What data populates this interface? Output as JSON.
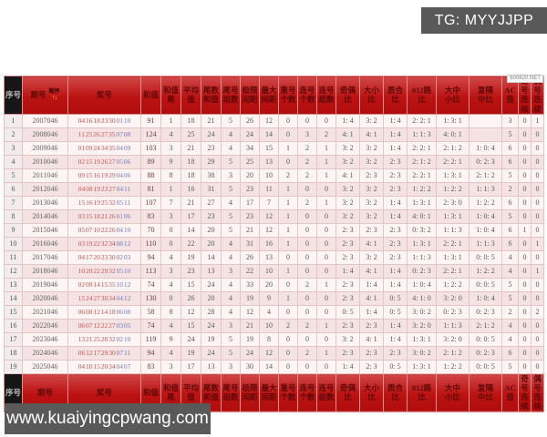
{
  "banners": {
    "tg": "TG: MYYJJPP",
    "site": "www.kuaiyingcpwang.com",
    "watermark": "600820.NET"
  },
  "colors": {
    "header_red": "#bc1212",
    "front_number": "#c85454",
    "back_number": "#7878bc",
    "banner_gray": "#595959"
  },
  "table": {
    "sort": {
      "label": "顺序",
      "arrows": "↑↓"
    },
    "columns": [
      {
        "key": "seq",
        "label": "序号"
      },
      {
        "key": "period",
        "label": "期号"
      },
      {
        "key": "prize",
        "label": "奖号"
      },
      {
        "key": "sum",
        "label": "和值"
      },
      {
        "key": "sum-tail",
        "label": "和值\n尾"
      },
      {
        "key": "avg",
        "label": "平均\n值"
      },
      {
        "key": "tail-sum",
        "label": "尾数\n和值"
      },
      {
        "key": "tail-groups",
        "label": "尾号\n组数"
      },
      {
        "key": "span",
        "label": "极限\n间距"
      },
      {
        "key": "max-gap",
        "label": "最大\n间距"
      },
      {
        "key": "repeat-count",
        "label": "重号\n个数"
      },
      {
        "key": "consec-count",
        "label": "连号\n个数"
      },
      {
        "key": "consec-groups",
        "label": "连号\n组数"
      },
      {
        "key": "odd-even-ratio",
        "label": "奇偶\n比"
      },
      {
        "key": "big-small-ratio",
        "label": "大小\n比"
      },
      {
        "key": "prime-comp-ratio",
        "label": "质合\n比"
      },
      {
        "key": "road012-ratio",
        "label": "012路\n比"
      },
      {
        "key": "big-mid-small-ratio",
        "label": "大中\n小比"
      },
      {
        "key": "rep-int-mid-ratio",
        "label": "复隔\n中比"
      },
      {
        "key": "ac-value",
        "label": "AC值"
      },
      {
        "key": "odd-run",
        "label": "奇号\n连续"
      },
      {
        "key": "even-run",
        "label": "偶号\n连续"
      }
    ],
    "rows": [
      {
        "seq": "1",
        "period": "2007046",
        "front": [
          "04",
          "16",
          "18",
          "23",
          "30"
        ],
        "back": [
          "01",
          "10"
        ],
        "stats": [
          "91",
          "1",
          "18",
          "21",
          "5",
          "26",
          "12",
          "0",
          "0",
          "0",
          "1: 4",
          "3: 2",
          "1: 4",
          "2: 2: 1",
          "1: 3: 1",
          "",
          "3",
          "0",
          "1"
        ]
      },
      {
        "seq": "2",
        "period": "2008046",
        "front": [
          "11",
          "25",
          "26",
          "27",
          "35"
        ],
        "back": [
          "07",
          "08"
        ],
        "stats": [
          "124",
          "4",
          "25",
          "24",
          "4",
          "24",
          "14",
          "0",
          "3",
          "2",
          "4: 1",
          "4: 1",
          "1: 4",
          "1: 1: 3",
          "4: 0: 1",
          "",
          "5",
          "0",
          "0"
        ]
      },
      {
        "seq": "3",
        "period": "2009046",
        "front": [
          "01",
          "09",
          "24",
          "34",
          "35"
        ],
        "back": [
          "04",
          "09"
        ],
        "stats": [
          "103",
          "3",
          "21",
          "23",
          "4",
          "34",
          "15",
          "1",
          "2",
          "1",
          "3: 2",
          "3: 2",
          "1: 4",
          "2: 2: 1",
          "2: 1: 2",
          "1: 0: 4",
          "6",
          "0",
          "0"
        ]
      },
      {
        "seq": "4",
        "period": "2010046",
        "front": [
          "02",
          "15",
          "19",
          "26",
          "27"
        ],
        "back": [
          "05",
          "06"
        ],
        "stats": [
          "89",
          "9",
          "18",
          "29",
          "5",
          "25",
          "13",
          "0",
          "2",
          "1",
          "3: 2",
          "3: 2",
          "2: 3",
          "2: 1: 2",
          "2: 2: 1",
          "0: 2: 3",
          "6",
          "0",
          "0"
        ]
      },
      {
        "seq": "5",
        "period": "2011046",
        "front": [
          "09",
          "15",
          "16",
          "19",
          "29"
        ],
        "back": [
          "04",
          "06"
        ],
        "stats": [
          "88",
          "8",
          "18",
          "38",
          "3",
          "20",
          "10",
          "2",
          "2",
          "1",
          "4: 1",
          "2: 3",
          "2: 3",
          "2: 2: 1",
          "1: 3: 1",
          "2: 1: 2",
          "5",
          "0",
          "0"
        ]
      },
      {
        "seq": "6",
        "period": "2012046",
        "front": [
          "04",
          "08",
          "19",
          "23",
          "27"
        ],
        "back": [
          "04",
          "11"
        ],
        "stats": [
          "81",
          "1",
          "16",
          "31",
          "5",
          "23",
          "11",
          "1",
          "0",
          "0",
          "3: 2",
          "3: 2",
          "2: 3",
          "1: 2: 2",
          "1: 2: 2",
          "1: 1: 3",
          "2",
          "0",
          "0"
        ]
      },
      {
        "seq": "7",
        "period": "2013046",
        "front": [
          "15",
          "16",
          "19",
          "25",
          "32"
        ],
        "back": [
          "05",
          "11"
        ],
        "stats": [
          "107",
          "7",
          "21",
          "27",
          "4",
          "17",
          "7",
          "1",
          "2",
          "1",
          "3: 2",
          "3: 2",
          "1: 4",
          "1: 3: 1",
          "2: 3: 0",
          "1: 2: 2",
          "6",
          "0",
          "0"
        ]
      },
      {
        "seq": "8",
        "period": "2014046",
        "front": [
          "03",
          "15",
          "18",
          "21",
          "26"
        ],
        "back": [
          "01",
          "06"
        ],
        "stats": [
          "83",
          "3",
          "17",
          "23",
          "5",
          "23",
          "12",
          "1",
          "0",
          "0",
          "3: 2",
          "3: 2",
          "1: 4",
          "4: 0: 1",
          "1: 3: 1",
          "1: 0: 4",
          "5",
          "0",
          "0"
        ]
      },
      {
        "seq": "9",
        "period": "2015046",
        "front": [
          "05",
          "07",
          "10",
          "22",
          "26"
        ],
        "back": [
          "04",
          "10"
        ],
        "stats": [
          "70",
          "0",
          "14",
          "20",
          "5",
          "21",
          "12",
          "1",
          "0",
          "0",
          "2: 3",
          "2: 3",
          "2: 3",
          "0: 3: 2",
          "1: 1: 3",
          "1: 0: 4",
          "6",
          "1",
          "0"
        ]
      },
      {
        "seq": "10",
        "period": "2016046",
        "front": [
          "03",
          "19",
          "22",
          "32",
          "34"
        ],
        "back": [
          "08",
          "12"
        ],
        "stats": [
          "110",
          "0",
          "22",
          "20",
          "4",
          "31",
          "16",
          "1",
          "0",
          "0",
          "2: 3",
          "4: 1",
          "2: 3",
          "1: 3: 1",
          "2: 2: 1",
          "1: 1: 3",
          "6",
          "0",
          "1"
        ]
      },
      {
        "seq": "11",
        "period": "2017046",
        "front": [
          "04",
          "17",
          "20",
          "23",
          "30"
        ],
        "back": [
          "02",
          "03"
        ],
        "stats": [
          "94",
          "4",
          "19",
          "14",
          "4",
          "26",
          "13",
          "0",
          "0",
          "0",
          "2: 3",
          "3: 2",
          "2: 3",
          "1: 1: 3",
          "1: 3: 1",
          "0: 0: 5",
          "4",
          "0",
          "0"
        ]
      },
      {
        "seq": "12",
        "period": "2018046",
        "front": [
          "10",
          "20",
          "22",
          "29",
          "32"
        ],
        "back": [
          "05",
          "10"
        ],
        "stats": [
          "113",
          "3",
          "23",
          "13",
          "3",
          "22",
          "10",
          "1",
          "0",
          "0",
          "1: 4",
          "4: 1",
          "1: 4",
          "0: 2: 3",
          "2: 2: 1",
          "1: 2: 2",
          "4",
          "0",
          "1"
        ]
      },
      {
        "seq": "13",
        "period": "2019046",
        "front": [
          "02",
          "08",
          "14",
          "15",
          "35"
        ],
        "back": [
          "10",
          "12"
        ],
        "stats": [
          "74",
          "4",
          "15",
          "24",
          "4",
          "33",
          "20",
          "0",
          "2",
          "1",
          "2: 3",
          "1: 4",
          "1: 4",
          "1: 0: 4",
          "1: 2: 2",
          "0: 0: 5",
          "5",
          "0",
          "0"
        ]
      },
      {
        "seq": "14",
        "period": "2020046",
        "front": [
          "15",
          "24",
          "27",
          "30",
          "34"
        ],
        "back": [
          "04",
          "12"
        ],
        "stats": [
          "130",
          "0",
          "26",
          "20",
          "4",
          "19",
          "9",
          "1",
          "0",
          "0",
          "2: 3",
          "4: 1",
          "0: 5",
          "4: 1: 0",
          "3: 2: 0",
          "1: 0: 4",
          "5",
          "0",
          "0"
        ]
      },
      {
        "seq": "15",
        "period": "2021046",
        "front": [
          "06",
          "08",
          "12",
          "14",
          "18"
        ],
        "back": [
          "06",
          "08"
        ],
        "stats": [
          "58",
          "8",
          "12",
          "28",
          "4",
          "12",
          "4",
          "0",
          "0",
          "0",
          "0: 5",
          "1: 4",
          "0: 5",
          "3: 0: 2",
          "0: 2: 3",
          "0: 2: 3",
          "2",
          "0",
          "2"
        ]
      },
      {
        "seq": "16",
        "period": "2022046",
        "front": [
          "06",
          "07",
          "12",
          "22",
          "27"
        ],
        "back": [
          "03",
          "05"
        ],
        "stats": [
          "74",
          "4",
          "15",
          "24",
          "3",
          "21",
          "10",
          "2",
          "2",
          "1",
          "2: 3",
          "2: 3",
          "1: 4",
          "3: 2: 0",
          "1: 1: 3",
          "2: 1: 2",
          "4",
          "0",
          "0"
        ]
      },
      {
        "seq": "17",
        "period": "2023046",
        "front": [
          "13",
          "21",
          "25",
          "28",
          "32"
        ],
        "back": [
          "02",
          "10"
        ],
        "stats": [
          "119",
          "9",
          "24",
          "19",
          "5",
          "19",
          "8",
          "0",
          "0",
          "0",
          "3: 2",
          "4: 1",
          "1: 4",
          "1: 3: 1",
          "3: 2: 0",
          "0: 0: 5",
          "4",
          "0",
          "0"
        ]
      },
      {
        "seq": "18",
        "period": "2024046",
        "front": [
          "06",
          "12",
          "17",
          "29",
          "30"
        ],
        "back": [
          "07",
          "11"
        ],
        "stats": [
          "94",
          "4",
          "19",
          "24",
          "5",
          "24",
          "12",
          "0",
          "2",
          "1",
          "2: 3",
          "2: 3",
          "2: 3",
          "3: 0: 2",
          "2: 1: 2",
          "0: 2: 3",
          "6",
          "0",
          "0"
        ]
      },
      {
        "seq": "19",
        "period": "2025046",
        "front": [
          "04",
          "10",
          "15",
          "20",
          "34"
        ],
        "back": [
          "04",
          "07"
        ],
        "stats": [
          "83",
          "3",
          "17",
          "13",
          "3",
          "30",
          "14",
          "0",
          "0",
          "0",
          "1: 4",
          "2: 3",
          "0: 5",
          "1: 3: 1",
          "1: 2: 2",
          "0: 0: 5",
          "5",
          "0",
          "0"
        ]
      }
    ]
  }
}
